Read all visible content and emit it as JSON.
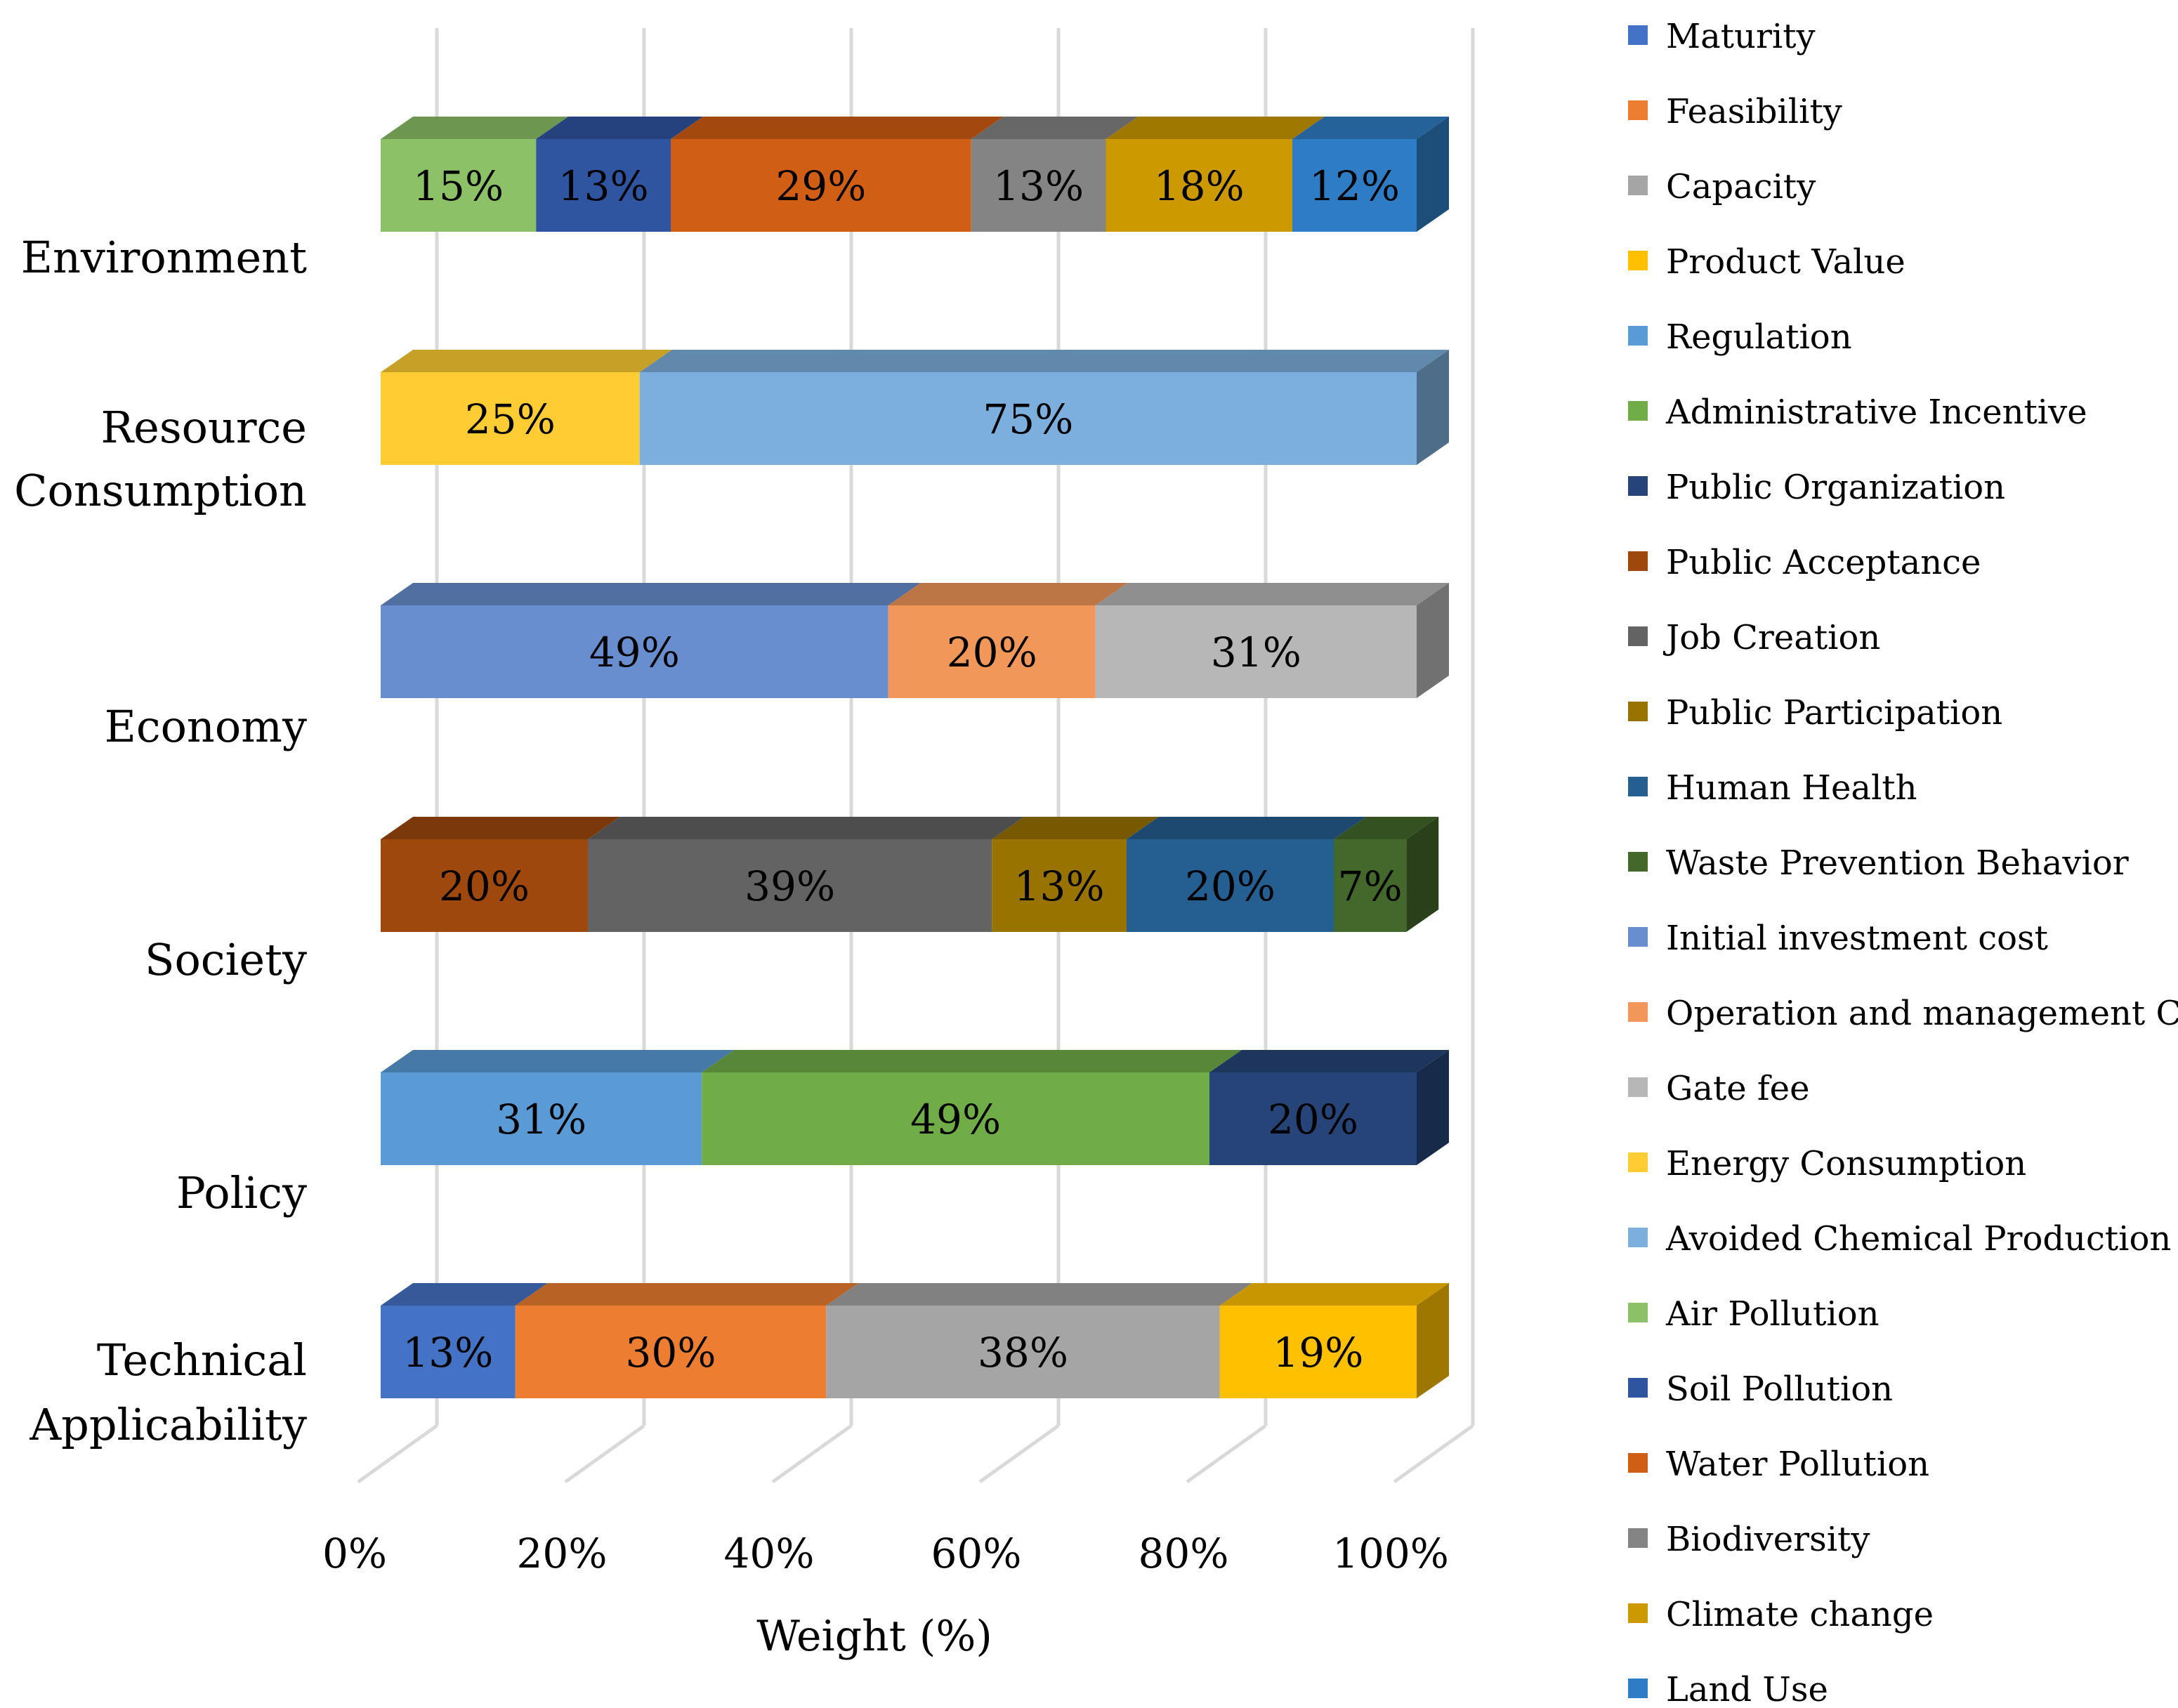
{
  "chart_data": {
    "type": "bar",
    "orientation": "horizontal",
    "stacked": "percent",
    "three_d": true,
    "xlabel": "Weight (%)",
    "ylabel": "",
    "xlim": [
      0,
      100
    ],
    "x_ticks": [
      "0%",
      "20%",
      "40%",
      "60%",
      "80%",
      "100%"
    ],
    "grid": true,
    "legend_position": "right",
    "categories": [
      "Environment",
      "Resource Consumption",
      "Economy",
      "Society",
      "Policy",
      "Technical Applicability"
    ],
    "bars": [
      {
        "category": "Environment",
        "segments": [
          {
            "series": "Air Pollution",
            "value": 15,
            "label": "15%"
          },
          {
            "series": "Soil Pollution",
            "value": 13,
            "label": "13%"
          },
          {
            "series": "Water Pollution",
            "value": 29,
            "label": "29%"
          },
          {
            "series": "Biodiversity",
            "value": 13,
            "label": "13%"
          },
          {
            "series": "Climate change",
            "value": 18,
            "label": "18%"
          },
          {
            "series": "Land Use",
            "value": 12,
            "label": "12%"
          }
        ]
      },
      {
        "category": "Resource Consumption",
        "segments": [
          {
            "series": "Energy Consumption",
            "value": 25,
            "label": "25%"
          },
          {
            "series": "Avoided Chemical Production",
            "value": 75,
            "label": "75%"
          }
        ]
      },
      {
        "category": "Economy",
        "segments": [
          {
            "series": "Initial investment cost",
            "value": 49,
            "label": "49%"
          },
          {
            "series": "Operation and management Cost",
            "value": 20,
            "label": "20%"
          },
          {
            "series": "Gate fee",
            "value": 31,
            "label": "31%"
          }
        ]
      },
      {
        "category": "Society",
        "segments": [
          {
            "series": "Public Acceptance",
            "value": 20,
            "label": "20%"
          },
          {
            "series": "Job Creation",
            "value": 39,
            "label": "39%"
          },
          {
            "series": "Public Participation",
            "value": 13,
            "label": "13%"
          },
          {
            "series": "Human Health",
            "value": 20,
            "label": "20%"
          },
          {
            "series": "Waste Prevention Behavior",
            "value": 7,
            "label": "7%"
          }
        ]
      },
      {
        "category": "Policy",
        "segments": [
          {
            "series": "Regulation",
            "value": 31,
            "label": "31%"
          },
          {
            "series": "Administrative Incentive",
            "value": 49,
            "label": "49%"
          },
          {
            "series": "Public Organization",
            "value": 20,
            "label": "20%"
          }
        ]
      },
      {
        "category": "Technical Applicability",
        "segments": [
          {
            "series": "Maturity",
            "value": 13,
            "label": "13%"
          },
          {
            "series": "Feasibility",
            "value": 30,
            "label": "30%"
          },
          {
            "series": "Capacity",
            "value": 38,
            "label": "38%"
          },
          {
            "series": "Product Value",
            "value": 19,
            "label": "19%"
          }
        ]
      }
    ],
    "series": [
      {
        "name": "Maturity",
        "color": "#4472C4"
      },
      {
        "name": "Feasibility",
        "color": "#ED7D31"
      },
      {
        "name": "Capacity",
        "color": "#A5A5A5"
      },
      {
        "name": "Product Value",
        "color": "#FFC000"
      },
      {
        "name": "Regulation",
        "color": "#5B9BD5"
      },
      {
        "name": "Administrative Incentive",
        "color": "#70AD47"
      },
      {
        "name": "Public Organization",
        "color": "#264478"
      },
      {
        "name": "Public Acceptance",
        "color": "#9E480E"
      },
      {
        "name": "Job Creation",
        "color": "#636363"
      },
      {
        "name": "Public Participation",
        "color": "#997300"
      },
      {
        "name": "Human Health",
        "color": "#255E91"
      },
      {
        "name": "Waste Prevention Behavior",
        "color": "#43682B"
      },
      {
        "name": "Initial investment cost",
        "color": "#698ED0"
      },
      {
        "name": "Operation and management Cost",
        "color": "#F1975A"
      },
      {
        "name": "Gate fee",
        "color": "#B7B7B7"
      },
      {
        "name": "Energy Consumption",
        "color": "#FFCD33"
      },
      {
        "name": "Avoided Chemical Production",
        "color": "#7CAFDD"
      },
      {
        "name": "Air Pollution",
        "color": "#8CC168"
      },
      {
        "name": "Soil Pollution",
        "color": "#2F55A1"
      },
      {
        "name": "Water Pollution",
        "color": "#D15E15"
      },
      {
        "name": "Biodiversity",
        "color": "#848484"
      },
      {
        "name": "Climate change",
        "color": "#CC9A00"
      },
      {
        "name": "Land Use",
        "color": "#2E7DC4"
      }
    ]
  }
}
